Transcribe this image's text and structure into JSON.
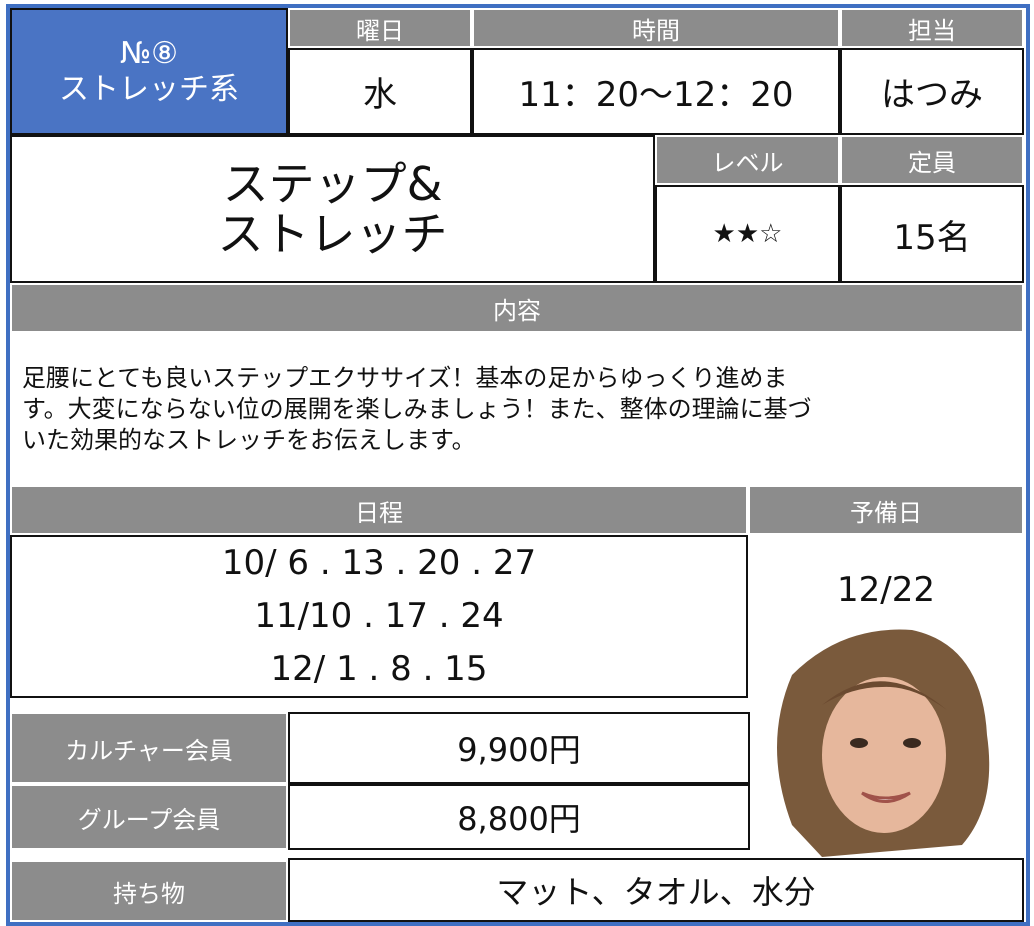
{
  "header": {
    "number": "№⑧",
    "category": "ストレッチ系"
  },
  "info": {
    "day_label": "曜日",
    "day": "水",
    "time_label": "時間",
    "time": "11：20～12：20",
    "instructor_label": "担当",
    "instructor": "はつみ"
  },
  "course": {
    "title_lines": [
      "ステップ&",
      "ストレッチ"
    ],
    "level_label": "レベル",
    "level": "★★☆",
    "capacity_label": "定員",
    "capacity": "15名"
  },
  "content": {
    "label": "内容",
    "text_lines": [
      "足腰にとても良いステップエクササイズ！基本の足からゆっくり進めま",
      "す。大変にならない位の展開を楽しみましょう！また、整体の理論に基づ",
      "いた効果的なストレッチをお伝えします。"
    ]
  },
  "schedule": {
    "label": "日程",
    "dates": [
      "10/ 6 . 13 . 20 . 27",
      "11/10 . 17 . 24",
      "12/ 1 . 8 . 15"
    ],
    "reserve_label": "予備日",
    "reserve": "12/22"
  },
  "fees": [
    {
      "label": "カルチャー会員",
      "price": "9,900円"
    },
    {
      "label": "グループ会員",
      "price": "8,800円"
    }
  ],
  "belongings": {
    "label": "持ち物",
    "items": "マット、タオル、水分"
  }
}
